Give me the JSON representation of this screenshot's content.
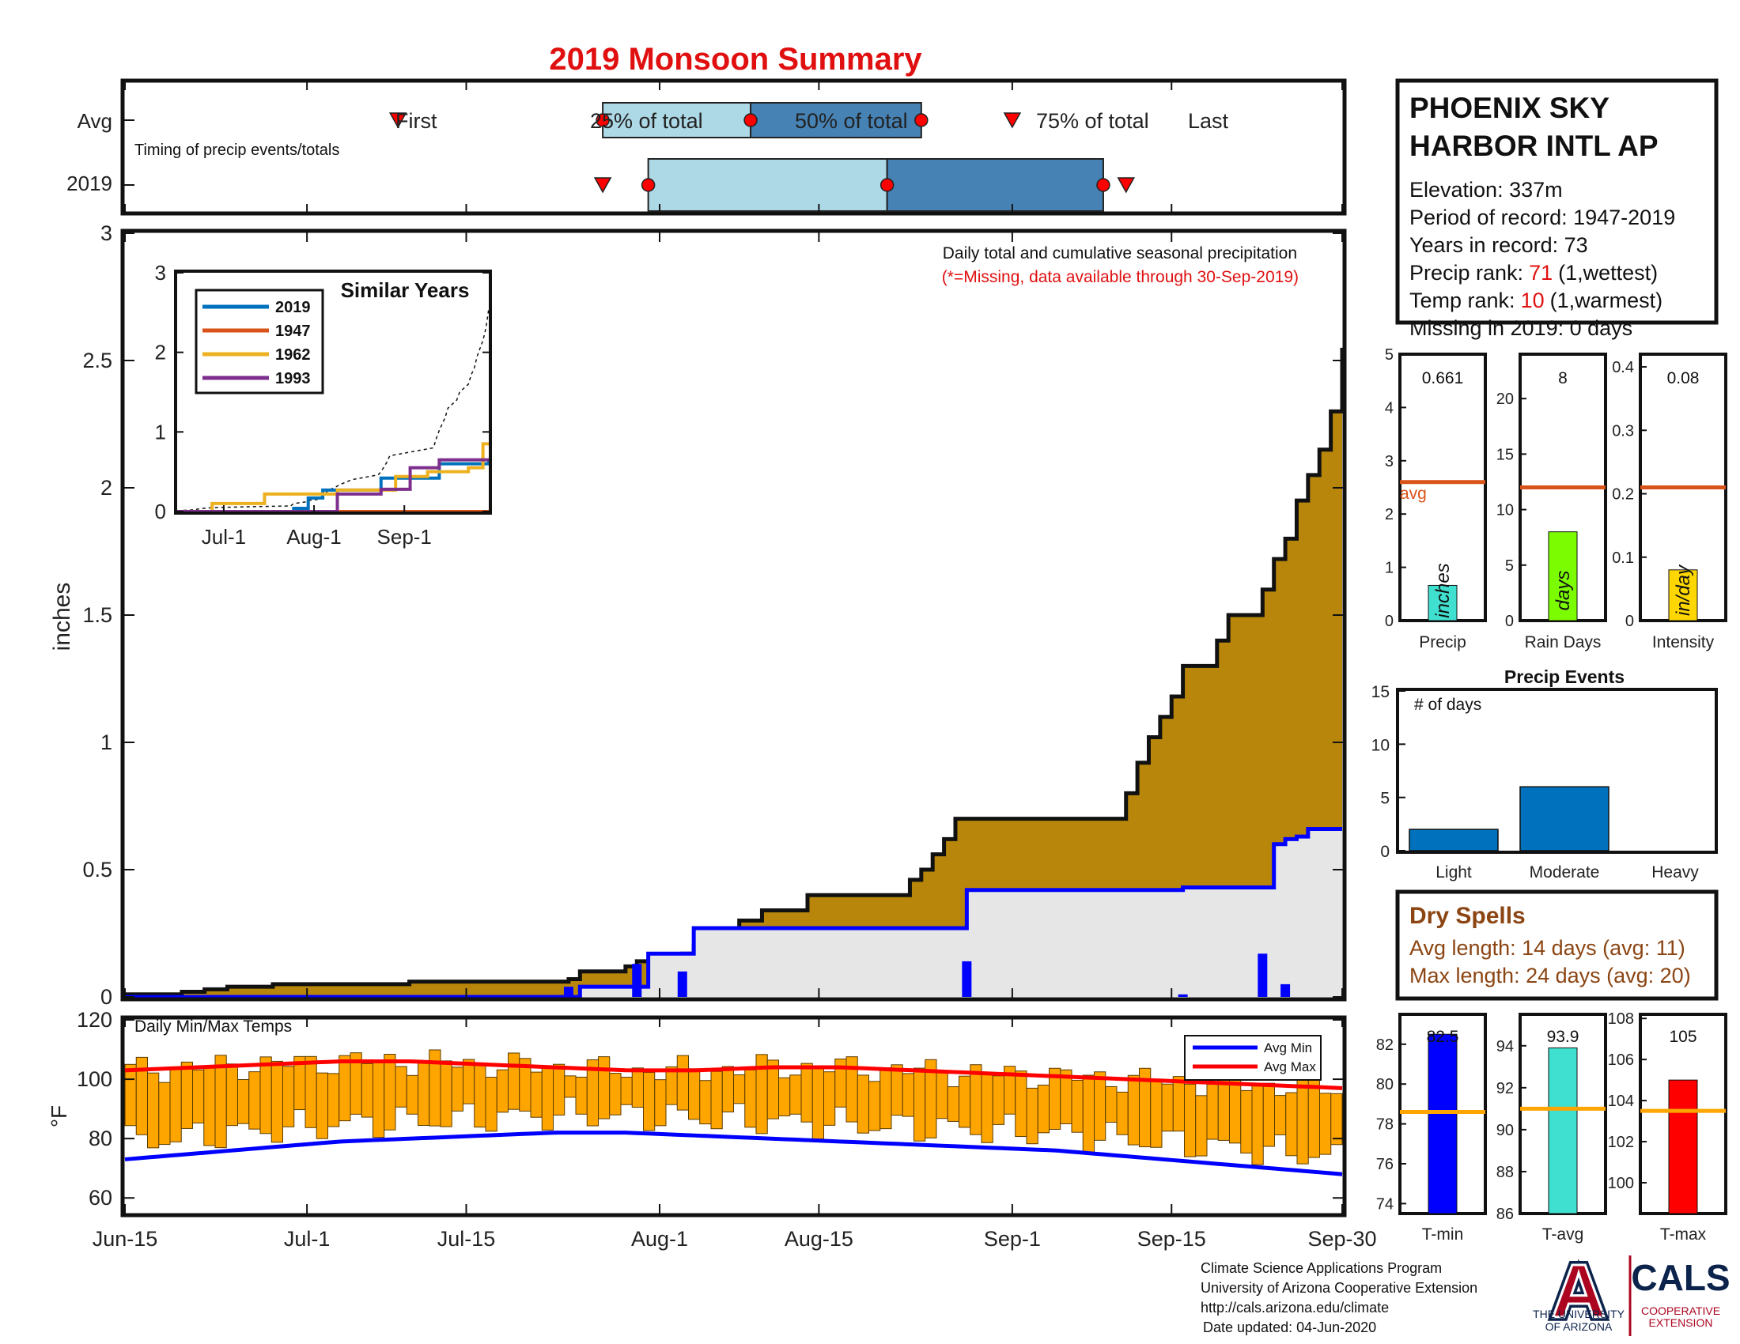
{
  "title": "2019 Monsoon Summary",
  "colors": {
    "cumulative_fill": "#b8860b",
    "avg_fill": "#e6e6e6",
    "avg_line": "#0000ff",
    "daily_bar": "#0000ff",
    "light_box": "#add8e6",
    "dark_box": "#4682b4",
    "temp_bar": "#ffa500",
    "avg_max_line": "#ff0000",
    "avg_min_line": "#0000ff",
    "highlight": "#ff0000",
    "avg_ref_line": "#d95319",
    "dry_spell_text": "#8b4513"
  },
  "timing": {
    "row_labels": [
      "Avg",
      "2019"
    ],
    "subtitle": "Timing of precip events/totals",
    "avg": {
      "first_day": 24,
      "p25_day": 42,
      "p50_day": 55,
      "p75_day": 70,
      "last_day": 78,
      "first_label": "First",
      "p25_label": "25% of total",
      "p50_label": "50% of total",
      "p75_label": "75% of total",
      "last_label": "Last"
    },
    "y2019": {
      "first_day": 42,
      "p25_day": 46,
      "p50_day": 67,
      "p75_day": 86,
      "last_day": 88
    }
  },
  "station": {
    "name_line1": "PHOENIX SKY",
    "name_line2": "HARBOR INTL AP",
    "elevation": "Elevation: 337m",
    "period": "Period of record: 1947-2019",
    "years": "Years in record: 73",
    "precip_rank_label": "Precip rank:",
    "precip_rank_value": "71",
    "precip_rank_suffix": "(1,wettest)",
    "temp_rank_label": "Temp rank:",
    "temp_rank_value": "10",
    "temp_rank_suffix": "(1,warmest)",
    "missing": "Missing in 2019: 0 days"
  },
  "main_chart": {
    "annotation": "Daily total and cumulative seasonal precipitation",
    "missing_note": "(*=Missing, data available through 30-Sep-2019)",
    "ylabel": "inches",
    "ylim": [
      0,
      3
    ],
    "yticks": [
      "0",
      "0.5",
      "1",
      "1.5",
      "2",
      "2.5",
      "3"
    ],
    "xticks": [
      "Jun-15",
      "Jul-1",
      "Jul-15",
      "Aug-1",
      "Aug-15",
      "Sep-1",
      "Sep-15",
      "Sep-30"
    ],
    "xtick_days": [
      0,
      16,
      30,
      47,
      61,
      78,
      92,
      107
    ],
    "n_days": 108
  },
  "chart_data": [
    {
      "type": "area",
      "title": "Daily total and cumulative seasonal precipitation",
      "ylabel": "inches",
      "ylim": [
        0,
        3
      ],
      "series": [
        {
          "name": "avg",
          "x_day": [
            0,
            5,
            7,
            9,
            13,
            25,
            39,
            40,
            44,
            45,
            48,
            49,
            50,
            51,
            52,
            54,
            56,
            60,
            69,
            70,
            71,
            72,
            73,
            88,
            89,
            90,
            91,
            92,
            93,
            96,
            97,
            100,
            101,
            102,
            103,
            104,
            105,
            106,
            107
          ],
          "y": [
            0.01,
            0.02,
            0.03,
            0.04,
            0.05,
            0.06,
            0.07,
            0.1,
            0.12,
            0.14,
            0.15,
            0.17,
            0.2,
            0.23,
            0.27,
            0.3,
            0.34,
            0.4,
            0.46,
            0.5,
            0.56,
            0.62,
            0.7,
            0.8,
            0.92,
            1.02,
            1.1,
            1.18,
            1.3,
            1.4,
            1.5,
            1.6,
            1.72,
            1.8,
            1.95,
            2.05,
            2.15,
            2.3,
            2.55
          ]
        },
        {
          "name": "2019",
          "x_day": [
            0,
            39,
            40,
            45,
            46,
            49,
            50,
            73,
            74,
            92,
            93,
            100,
            101,
            102,
            103,
            104,
            107
          ],
          "y": [
            0,
            0,
            0.04,
            0.04,
            0.17,
            0.17,
            0.27,
            0.27,
            0.42,
            0.42,
            0.43,
            0.43,
            0.6,
            0.62,
            0.63,
            0.66,
            0.66
          ]
        }
      ],
      "daily_precip": {
        "x_day": [
          39,
          45,
          49,
          74,
          93,
          100,
          102
        ],
        "y": [
          0.04,
          0.13,
          0.1,
          0.14,
          0.01,
          0.17,
          0.05
        ]
      }
    },
    {
      "type": "line",
      "title": "Similar Years",
      "xticks": [
        "Jul-1",
        "Aug-1",
        "Sep-1"
      ],
      "ylim": [
        0,
        3
      ],
      "yticks": [
        "0",
        "1",
        "2",
        "3"
      ],
      "series": [
        {
          "name": "2019",
          "x_day": [
            0,
            38,
            40,
            45,
            50,
            70,
            90,
            107
          ],
          "y": [
            0,
            0,
            0.04,
            0.17,
            0.27,
            0.42,
            0.6,
            0.66
          ]
        },
        {
          "name": "1947",
          "x_day": [
            0,
            107
          ],
          "y": [
            0,
            0
          ]
        },
        {
          "name": "1962",
          "x_day": [
            0,
            12,
            30,
            55,
            75,
            86,
            100,
            105,
            107
          ],
          "y": [
            0,
            0.1,
            0.22,
            0.27,
            0.44,
            0.5,
            0.55,
            0.85,
            0.85
          ]
        },
        {
          "name": "1993",
          "x_day": [
            0,
            40,
            55,
            70,
            80,
            90,
            107
          ],
          "y": [
            0,
            0,
            0.22,
            0.28,
            0.55,
            0.65,
            0.65
          ]
        }
      ]
    },
    {
      "type": "bar",
      "title": "Daily Min/Max Temps",
      "ylabel": "°F",
      "ylim": [
        55,
        120
      ],
      "yticks": [
        "60",
        "80",
        "100",
        "120"
      ],
      "avg_min": [
        73,
        75,
        77,
        79,
        80,
        81,
        82,
        82,
        81,
        80,
        79,
        78,
        77,
        76,
        74,
        72,
        70,
        68
      ],
      "avg_max": [
        103,
        104,
        105,
        106,
        106,
        105,
        104,
        103,
        103,
        104,
        104,
        103,
        102,
        101,
        100,
        99,
        98,
        97
      ],
      "legend": [
        "Avg Min",
        "Avg Max"
      ],
      "legend_position": "top-right"
    },
    {
      "type": "bar",
      "categories": [
        "Precip",
        "Rain Days",
        "Intensity"
      ],
      "values": [
        0.661,
        8,
        0.08
      ],
      "avg": [
        2.6,
        12,
        0.21
      ],
      "ylims": [
        [
          0,
          5
        ],
        [
          0,
          24
        ],
        [
          0,
          0.42
        ]
      ],
      "yticks": [
        [
          "0",
          "1",
          "2",
          "3",
          "4",
          "5"
        ],
        [
          "0",
          "5",
          "10",
          "15",
          "20"
        ],
        [
          "0",
          "0.1",
          "0.2",
          "0.3",
          "0.4"
        ]
      ],
      "units": [
        "inches",
        "days",
        "in/day"
      ],
      "avg_label": "avg"
    },
    {
      "type": "bar",
      "title": "Precip Events",
      "ylabel": "# of days",
      "categories": [
        "Light",
        "Moderate",
        "Heavy"
      ],
      "values": [
        2,
        6,
        0
      ],
      "ylim": [
        0,
        15
      ],
      "yticks": [
        "0",
        "5",
        "10",
        "15"
      ]
    },
    {
      "type": "bar",
      "categories": [
        "T-min",
        "T-avg",
        "T-max"
      ],
      "values": [
        82.5,
        93.9,
        105
      ],
      "avg": [
        78.6,
        91.0,
        103.5
      ],
      "ylims": [
        [
          73.5,
          83.5
        ],
        [
          86,
          95.5
        ],
        [
          98.5,
          108.2
        ]
      ],
      "yticks": [
        [
          "74",
          "76",
          "78",
          "80",
          "82"
        ],
        [
          "86",
          "88",
          "90",
          "92",
          "94"
        ],
        [
          "100",
          "102",
          "104",
          "106",
          "108"
        ]
      ]
    }
  ],
  "dry_spells": {
    "title": "Dry Spells",
    "avg_length": "Avg length: 14 days (avg: 11)",
    "max_length": "Max length: 24 days (avg: 20)"
  },
  "footer": {
    "line1": "Climate Science Applications Program",
    "line2": "University of Arizona Cooperative Extension",
    "line3": "http://cals.arizona.edu/climate",
    "line4": "Date updated: 04-Jun-2020"
  },
  "logos": {
    "ua_letter": "A",
    "ua_text1": "THE UNIVERSITY",
    "ua_text2": "OF ARIZONA",
    "cals_text": "CALS",
    "cals_sub1": "COOPERATIVE",
    "cals_sub2": "EXTENSION"
  }
}
